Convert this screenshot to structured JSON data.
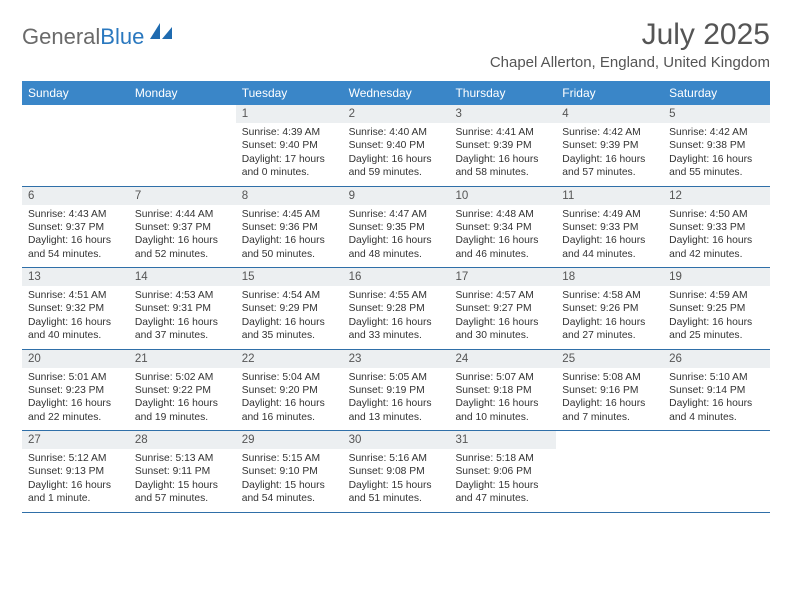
{
  "brand": {
    "part1": "General",
    "part2": "Blue"
  },
  "title": "July 2025",
  "location": "Chapel Allerton, England, United Kingdom",
  "colors": {
    "header_bg": "#3a86c8",
    "daynum_bg": "#eceff1",
    "rule": "#2f6fa8",
    "text": "#333333",
    "title": "#555555"
  },
  "dow": [
    "Sunday",
    "Monday",
    "Tuesday",
    "Wednesday",
    "Thursday",
    "Friday",
    "Saturday"
  ],
  "weeks": [
    [
      null,
      null,
      {
        "n": "1",
        "sr": "4:39 AM",
        "ss": "9:40 PM",
        "dl": "17 hours and 0 minutes."
      },
      {
        "n": "2",
        "sr": "4:40 AM",
        "ss": "9:40 PM",
        "dl": "16 hours and 59 minutes."
      },
      {
        "n": "3",
        "sr": "4:41 AM",
        "ss": "9:39 PM",
        "dl": "16 hours and 58 minutes."
      },
      {
        "n": "4",
        "sr": "4:42 AM",
        "ss": "9:39 PM",
        "dl": "16 hours and 57 minutes."
      },
      {
        "n": "5",
        "sr": "4:42 AM",
        "ss": "9:38 PM",
        "dl": "16 hours and 55 minutes."
      }
    ],
    [
      {
        "n": "6",
        "sr": "4:43 AM",
        "ss": "9:37 PM",
        "dl": "16 hours and 54 minutes."
      },
      {
        "n": "7",
        "sr": "4:44 AM",
        "ss": "9:37 PM",
        "dl": "16 hours and 52 minutes."
      },
      {
        "n": "8",
        "sr": "4:45 AM",
        "ss": "9:36 PM",
        "dl": "16 hours and 50 minutes."
      },
      {
        "n": "9",
        "sr": "4:47 AM",
        "ss": "9:35 PM",
        "dl": "16 hours and 48 minutes."
      },
      {
        "n": "10",
        "sr": "4:48 AM",
        "ss": "9:34 PM",
        "dl": "16 hours and 46 minutes."
      },
      {
        "n": "11",
        "sr": "4:49 AM",
        "ss": "9:33 PM",
        "dl": "16 hours and 44 minutes."
      },
      {
        "n": "12",
        "sr": "4:50 AM",
        "ss": "9:33 PM",
        "dl": "16 hours and 42 minutes."
      }
    ],
    [
      {
        "n": "13",
        "sr": "4:51 AM",
        "ss": "9:32 PM",
        "dl": "16 hours and 40 minutes."
      },
      {
        "n": "14",
        "sr": "4:53 AM",
        "ss": "9:31 PM",
        "dl": "16 hours and 37 minutes."
      },
      {
        "n": "15",
        "sr": "4:54 AM",
        "ss": "9:29 PM",
        "dl": "16 hours and 35 minutes."
      },
      {
        "n": "16",
        "sr": "4:55 AM",
        "ss": "9:28 PM",
        "dl": "16 hours and 33 minutes."
      },
      {
        "n": "17",
        "sr": "4:57 AM",
        "ss": "9:27 PM",
        "dl": "16 hours and 30 minutes."
      },
      {
        "n": "18",
        "sr": "4:58 AM",
        "ss": "9:26 PM",
        "dl": "16 hours and 27 minutes."
      },
      {
        "n": "19",
        "sr": "4:59 AM",
        "ss": "9:25 PM",
        "dl": "16 hours and 25 minutes."
      }
    ],
    [
      {
        "n": "20",
        "sr": "5:01 AM",
        "ss": "9:23 PM",
        "dl": "16 hours and 22 minutes."
      },
      {
        "n": "21",
        "sr": "5:02 AM",
        "ss": "9:22 PM",
        "dl": "16 hours and 19 minutes."
      },
      {
        "n": "22",
        "sr": "5:04 AM",
        "ss": "9:20 PM",
        "dl": "16 hours and 16 minutes."
      },
      {
        "n": "23",
        "sr": "5:05 AM",
        "ss": "9:19 PM",
        "dl": "16 hours and 13 minutes."
      },
      {
        "n": "24",
        "sr": "5:07 AM",
        "ss": "9:18 PM",
        "dl": "16 hours and 10 minutes."
      },
      {
        "n": "25",
        "sr": "5:08 AM",
        "ss": "9:16 PM",
        "dl": "16 hours and 7 minutes."
      },
      {
        "n": "26",
        "sr": "5:10 AM",
        "ss": "9:14 PM",
        "dl": "16 hours and 4 minutes."
      }
    ],
    [
      {
        "n": "27",
        "sr": "5:12 AM",
        "ss": "9:13 PM",
        "dl": "16 hours and 1 minute."
      },
      {
        "n": "28",
        "sr": "5:13 AM",
        "ss": "9:11 PM",
        "dl": "15 hours and 57 minutes."
      },
      {
        "n": "29",
        "sr": "5:15 AM",
        "ss": "9:10 PM",
        "dl": "15 hours and 54 minutes."
      },
      {
        "n": "30",
        "sr": "5:16 AM",
        "ss": "9:08 PM",
        "dl": "15 hours and 51 minutes."
      },
      {
        "n": "31",
        "sr": "5:18 AM",
        "ss": "9:06 PM",
        "dl": "15 hours and 47 minutes."
      },
      null,
      null
    ]
  ],
  "labels": {
    "sunrise": "Sunrise: ",
    "sunset": "Sunset: ",
    "daylight": "Daylight: "
  }
}
